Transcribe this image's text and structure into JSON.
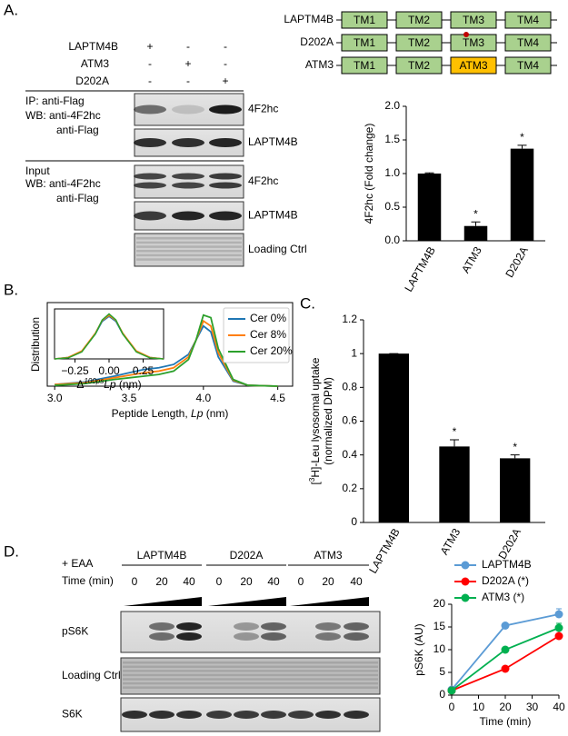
{
  "panel_labels": [
    "A.",
    "B.",
    "C.",
    "D."
  ],
  "panel_a": {
    "constructs": [
      "LAPTM4B",
      "ATM3",
      "D202A"
    ],
    "signs": [
      [
        "+",
        "-",
        "-"
      ],
      [
        "-",
        "+",
        "-"
      ],
      [
        "-",
        "-",
        "+"
      ]
    ],
    "ip_labels": [
      "IP: anti-Flag",
      "WB: anti-4F2hc",
      "anti-Flag"
    ],
    "input_labels": [
      "Input",
      "WB: anti-4F2hc",
      "anti-Flag"
    ],
    "blot_labels": [
      "4F2hc",
      "LAPTM4B",
      "4F2hc",
      "LAPTM4B",
      "Loading Ctrl"
    ],
    "domains": [
      {
        "name": "LAPTM4B",
        "boxes": [
          "TM1",
          "TM2",
          "TM3",
          "TM4"
        ],
        "box_colors": [
          "#a9d18e",
          "#a9d18e",
          "#a9d18e",
          "#a9d18e"
        ]
      },
      {
        "name": "D202A",
        "boxes": [
          "TM1",
          "TM2",
          "TM3",
          "TM4"
        ],
        "box_colors": [
          "#a9d18e",
          "#a9d18e",
          "#a9d18e",
          "#a9d18e"
        ]
      },
      {
        "name": "ATM3",
        "boxes": [
          "TM1",
          "TM2",
          "ATM3",
          "TM4"
        ],
        "box_colors": [
          "#a9d18e",
          "#a9d18e",
          "#ffc000",
          "#a9d18e"
        ]
      }
    ]
  },
  "panel_d": {
    "treatment": "+ EAA",
    "time_label": "Time (min)",
    "groups": [
      "LAPTM4B",
      "D202A",
      "ATM3"
    ],
    "times": [
      "0",
      "20",
      "40"
    ],
    "rows": [
      "pS6K",
      "Loading Ctrl",
      "S6K"
    ]
  },
  "chart_data": [
    {
      "type": "bar",
      "ylabel": "4F2hc (Fold change)",
      "categories": [
        "LAPTM4B",
        "ATM3",
        "D202A"
      ],
      "values": [
        1.0,
        0.22,
        1.37
      ],
      "errors": [
        0.01,
        0.06,
        0.05
      ],
      "significance": [
        null,
        "*",
        "*"
      ],
      "color": "#000000",
      "ylim": [
        0,
        2
      ],
      "yticks": [
        {
          "value": 0,
          "label": "0.0"
        },
        {
          "value": 0.5,
          "label": "0.5"
        },
        {
          "value": 1,
          "label": "1.0"
        },
        {
          "value": 1.5,
          "label": "1.5"
        },
        {
          "value": 2,
          "label": "2.0"
        }
      ]
    },
    {
      "type": "line",
      "ylabel": "Distribution",
      "xlabel_parts": [
        "Peptide Length, ",
        "Lp",
        " (nm)"
      ],
      "x": [
        3.0,
        3.2,
        3.4,
        3.5,
        3.6,
        3.7,
        3.8,
        3.9,
        3.95,
        4.0,
        4.05,
        4.1,
        4.2,
        4.3,
        4.5
      ],
      "series": [
        {
          "name": "Cer 0%",
          "color": "#1f77b4",
          "values": [
            0.02,
            0.05,
            0.12,
            0.16,
            0.2,
            0.22,
            0.26,
            0.38,
            0.55,
            0.72,
            0.65,
            0.35,
            0.06,
            0.01,
            0
          ]
        },
        {
          "name": "Cer 8%",
          "color": "#ff7f0e",
          "values": [
            0.02,
            0.04,
            0.1,
            0.13,
            0.16,
            0.18,
            0.22,
            0.35,
            0.55,
            0.78,
            0.72,
            0.4,
            0.07,
            0.01,
            0
          ]
        },
        {
          "name": "Cer 20%",
          "color": "#2ca02c",
          "values": [
            0.01,
            0.03,
            0.08,
            0.1,
            0.12,
            0.14,
            0.18,
            0.32,
            0.55,
            0.85,
            0.82,
            0.45,
            0.08,
            0.01,
            0
          ]
        }
      ],
      "xlim": [
        2.95,
        4.6
      ],
      "xticks": [
        {
          "value": 3,
          "label": "3.0"
        },
        {
          "value": 3.5,
          "label": "3.5"
        },
        {
          "value": 4,
          "label": "4.0"
        },
        {
          "value": 4.5,
          "label": "4.5"
        }
      ],
      "ylim": [
        0,
        1
      ],
      "inset": {
        "xlabel_parts": [
          "Δ",
          "100ps",
          "Lp",
          " (nm)"
        ],
        "x": [
          -0.4,
          -0.3,
          -0.2,
          -0.1,
          -0.05,
          0,
          0.05,
          0.1,
          0.2,
          0.3,
          0.4
        ],
        "series": [
          {
            "color": "#1f77b4",
            "values": [
              0.0,
              0.03,
              0.15,
              0.5,
              0.75,
              0.85,
              0.75,
              0.5,
              0.15,
              0.03,
              0.0
            ]
          },
          {
            "color": "#ff7f0e",
            "values": [
              0.0,
              0.03,
              0.16,
              0.52,
              0.77,
              0.87,
              0.77,
              0.52,
              0.16,
              0.03,
              0.0
            ]
          },
          {
            "color": "#2ca02c",
            "values": [
              0.0,
              0.02,
              0.14,
              0.5,
              0.78,
              0.9,
              0.78,
              0.5,
              0.14,
              0.02,
              0.0
            ]
          }
        ],
        "xlim": [
          -0.4,
          0.4
        ],
        "xticks": [
          {
            "value": -0.25,
            "label": "−0.25"
          },
          {
            "value": 0,
            "label": "0.00"
          },
          {
            "value": 0.25,
            "label": "0.25"
          }
        ],
        "ylim": [
          0,
          1
        ]
      }
    },
    {
      "type": "bar",
      "ylabel_parts": [
        "[",
        "3",
        "H]-Leu lysosomal uptake"
      ],
      "ylabel2": "(normalized DPM)",
      "categories": [
        "LAPTM4B",
        "ATM3",
        "D202A"
      ],
      "values": [
        1,
        0.45,
        0.38
      ],
      "errors": [
        0,
        0.04,
        0.02
      ],
      "significance": [
        null,
        "*",
        "*"
      ],
      "color": "#000000",
      "ylim": [
        0,
        1.2
      ],
      "yticks": [
        0,
        0.2,
        0.4,
        0.6,
        0.8,
        1,
        1.2
      ]
    },
    {
      "type": "line",
      "xlabel": "Time (min)",
      "ylabel": "pS6K (AU)",
      "x": [
        0,
        20,
        40
      ],
      "series": [
        {
          "name": "LAPTM4B",
          "color": "#5b9bd5",
          "values": [
            1.2,
            15.3,
            17.8
          ],
          "errors": [
            0.3,
            0.5,
            1.2
          ]
        },
        {
          "name": "D202A (*)",
          "color": "#ff0000",
          "values": [
            1.0,
            5.8,
            13.0
          ],
          "errors": [
            0.2,
            0.4,
            1.2
          ]
        },
        {
          "name": "ATM3 (*)",
          "color": "#00b050",
          "values": [
            1.0,
            10.0,
            14.8
          ],
          "errors": [
            0.2,
            0.5,
            1.0
          ]
        }
      ],
      "xlim": [
        0,
        40
      ],
      "xticks": [
        0,
        10,
        20,
        30,
        40
      ],
      "ylim": [
        0,
        20
      ],
      "yticks": [
        0,
        5,
        10,
        15,
        20
      ]
    }
  ]
}
